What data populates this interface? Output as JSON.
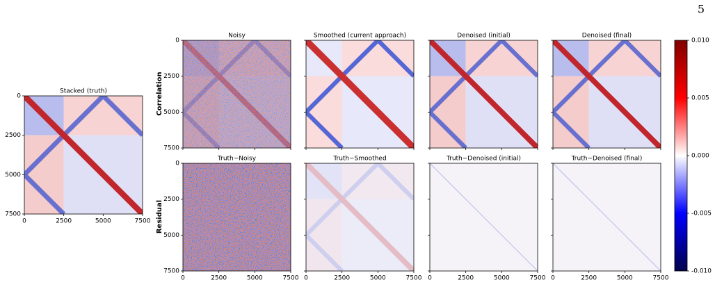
{
  "page_number": "5",
  "panels": [
    {
      "title": "Stacked (truth)"
    },
    {
      "title": "Noisy"
    },
    {
      "title": "Smoothed (current approach)"
    },
    {
      "title": "Denoised (initial)"
    },
    {
      "title": "Denoised (final)"
    },
    {
      "title": "Truth−Noisy"
    },
    {
      "title": "Truth−Smoothed"
    },
    {
      "title": "Truth−Denoised (initial)"
    },
    {
      "title": "Truth−Denoised (final)"
    }
  ],
  "row_labels": [
    "Correlation",
    "Residual"
  ],
  "axis_ticks": [
    "0",
    "2500",
    "5000",
    "7500"
  ],
  "colorbar_ticks": [
    "0.010",
    "0.005",
    "0.000",
    "-0.005",
    "-0.010"
  ]
}
